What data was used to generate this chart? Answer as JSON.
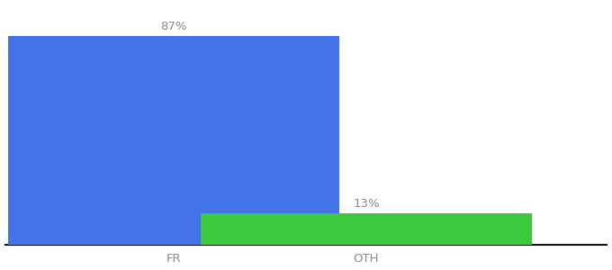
{
  "categories": [
    "FR",
    "OTH"
  ],
  "values": [
    87,
    13
  ],
  "bar_colors": [
    "#4472e8",
    "#3dc93d"
  ],
  "value_labels": [
    "87%",
    "13%"
  ],
  "background_color": "#ffffff",
  "text_color": "#8a8a8a",
  "axis_line_color": "#111111",
  "ylim": [
    0,
    100
  ],
  "bar_width": 0.55,
  "label_fontsize": 9.5,
  "tick_fontsize": 9.5,
  "x_positions": [
    0.28,
    0.6
  ],
  "xlim": [
    0.0,
    1.0
  ]
}
